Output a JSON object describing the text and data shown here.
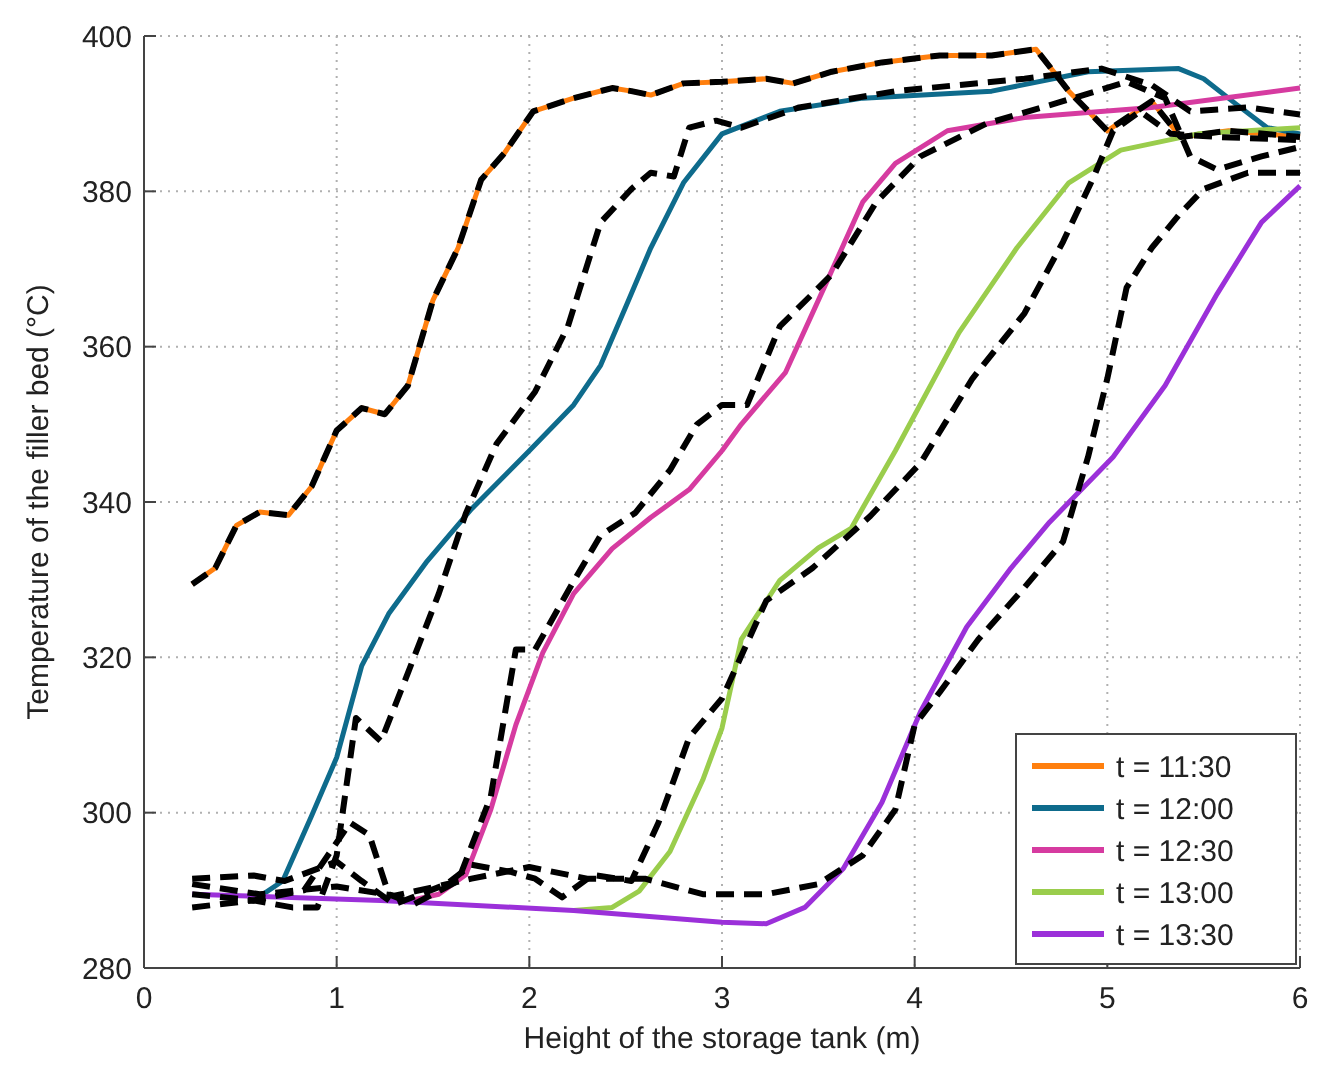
{
  "chart_data": {
    "type": "line",
    "xlabel": "Height of the storage tank (m)",
    "ylabel": "Temperature of the filler bed (°C)",
    "xlim": [
      0,
      6
    ],
    "xticks": [
      0,
      1,
      2,
      3,
      4,
      5,
      6
    ],
    "ylim": [
      280,
      400
    ],
    "yticks": [
      280,
      300,
      320,
      340,
      360,
      380,
      400
    ],
    "grid": true,
    "legend": "bottom right",
    "series": [
      {
        "name": "t = 11:30",
        "color": "#ff7f0e",
        "line_style": "solid",
        "x": [
          0.25,
          0.37,
          0.48,
          0.6,
          0.75,
          0.87,
          1.0,
          1.13,
          1.25,
          1.37,
          1.5,
          1.63,
          1.75,
          1.87,
          2.02,
          2.23,
          2.43,
          2.53,
          2.63,
          2.8,
          3.0,
          3.23,
          3.37,
          3.57,
          3.83,
          4.13,
          4.4,
          4.63,
          4.8,
          5.0,
          5.23,
          5.38,
          5.63,
          6.0
        ],
        "values": [
          329.4,
          331.5,
          337,
          338.7,
          338.3,
          342,
          349.2,
          352.1,
          351.3,
          355,
          366,
          372.7,
          381.5,
          384.9,
          390.3,
          392,
          393.3,
          392.9,
          392.4,
          393.9,
          394.1,
          394.5,
          393.9,
          395.4,
          396.6,
          397.5,
          397.5,
          398.3,
          392.9,
          387.8,
          391.6,
          387,
          387.8,
          387
        ]
      },
      {
        "name": "t = 12:00",
        "color": "#0e6b8c",
        "line_style": "solid",
        "x": [
          0.57,
          0.72,
          0.87,
          1.0,
          1.13,
          1.27,
          1.47,
          1.7,
          2.0,
          2.23,
          2.37,
          2.5,
          2.63,
          2.8,
          3.0,
          3.3,
          3.73,
          4.4,
          4.9,
          5.37,
          5.5,
          5.67,
          5.83,
          6.0
        ],
        "values": [
          288.7,
          291.2,
          299.6,
          307.1,
          318.9,
          325.6,
          332.4,
          339.1,
          346.6,
          352.5,
          357.6,
          365.1,
          372.7,
          381.1,
          387.4,
          390.3,
          392,
          392.9,
          395.4,
          395.8,
          394.5,
          391.2,
          388.2,
          387.4
        ]
      },
      {
        "name": "t = 12:30",
        "color": "#d63ba0",
        "line_style": "solid",
        "x": [
          1.35,
          1.53,
          1.67,
          1.8,
          1.93,
          2.07,
          2.23,
          2.43,
          2.63,
          2.83,
          3.0,
          3.1,
          3.33,
          3.53,
          3.73,
          3.9,
          4.17,
          4.57,
          5.23,
          6.0
        ],
        "values": [
          288.5,
          289.5,
          292,
          300.4,
          311.3,
          320.6,
          328.2,
          334,
          338,
          341.6,
          346.6,
          350,
          356.7,
          367.6,
          378.6,
          383.6,
          387.8,
          389.5,
          390.8,
          393.3
        ]
      },
      {
        "name": "t = 13:00",
        "color": "#9acd4c",
        "line_style": "solid",
        "x": [
          2.23,
          2.43,
          2.57,
          2.73,
          2.9,
          3.0,
          3.1,
          3.3,
          3.5,
          3.67,
          3.9,
          4.23,
          4.53,
          4.8,
          5.07,
          5.47,
          6.0
        ],
        "values": [
          287.4,
          287.8,
          289.9,
          295,
          304.2,
          310.9,
          322.3,
          329.9,
          334.1,
          336.6,
          346.6,
          361.8,
          372.7,
          381.1,
          385.3,
          387.4,
          388.2
        ]
      },
      {
        "name": "t = 13:30",
        "color": "#9b30d9",
        "line_style": "solid",
        "x": [
          0.25,
          1.23,
          2.23,
          3.0,
          3.23,
          3.43,
          3.63,
          3.83,
          4.03,
          4.27,
          4.5,
          4.7,
          5.03,
          5.3,
          5.57,
          5.8,
          6.0
        ],
        "values": [
          289.5,
          288.7,
          287.4,
          285.9,
          285.7,
          287.8,
          292.8,
          301.3,
          313,
          323.9,
          331.5,
          337.4,
          345.8,
          355,
          366.8,
          376,
          380.7
        ]
      },
      {
        "color": "#000000",
        "line_style": "dashed",
        "x": [
          0.25,
          0.37,
          0.48,
          0.6,
          0.75,
          0.87,
          1.0,
          1.13,
          1.25,
          1.37,
          1.5,
          1.63,
          1.75,
          1.87,
          2.02,
          2.23,
          2.43,
          2.53,
          2.63,
          2.8,
          3.0,
          3.23,
          3.37,
          3.57,
          3.83,
          4.13,
          4.4,
          4.63,
          4.8,
          5.0,
          5.23,
          5.38,
          5.63,
          6.0
        ],
        "values": [
          329.4,
          331.5,
          337,
          338.7,
          338.3,
          342,
          349.2,
          352.1,
          351.3,
          355,
          366,
          372.7,
          381.5,
          384.9,
          390.3,
          392,
          393.3,
          392.9,
          392.4,
          393.9,
          394.1,
          394.5,
          393.9,
          395.4,
          396.6,
          397.5,
          397.5,
          398.3,
          392.9,
          387.8,
          391.6,
          387,
          387.8,
          387
        ]
      },
      {
        "color": "#000000",
        "line_style": "dashed",
        "x": [
          0.25,
          0.57,
          0.77,
          0.9,
          1.0,
          1.1,
          1.23,
          1.37,
          1.53,
          1.67,
          1.83,
          2.03,
          2.2,
          2.37,
          2.53,
          2.63,
          2.75,
          2.83,
          2.97,
          3.1,
          3.4,
          3.9,
          4.57,
          4.97,
          5.23,
          5.43,
          5.73,
          6.0
        ],
        "values": [
          287.8,
          288.7,
          287.8,
          287.8,
          294.5,
          312.2,
          309.2,
          318,
          328.2,
          338.5,
          347.5,
          354.2,
          362.6,
          376,
          380.3,
          382.4,
          381.9,
          388.2,
          389.1,
          388.2,
          390.8,
          392.9,
          394.5,
          395.8,
          393.7,
          390.3,
          390.8,
          389.9
        ]
      },
      {
        "color": "#000000",
        "line_style": "dashed",
        "x": [
          0.25,
          0.57,
          0.83,
          1.07,
          1.17,
          1.27,
          1.4,
          1.63,
          1.8,
          1.93,
          2.03,
          2.23,
          2.37,
          2.55,
          2.73,
          2.87,
          3.0,
          3.13,
          3.3,
          3.57,
          3.8,
          4.03,
          4.37,
          4.77,
          5.1,
          5.3,
          5.43,
          5.57,
          5.8,
          6.0
        ],
        "values": [
          289.5,
          288.7,
          290,
          298.7,
          297.1,
          289.5,
          288.2,
          291.2,
          302.1,
          321,
          321,
          329.8,
          335.7,
          338.6,
          344.1,
          350,
          352.5,
          352.5,
          362.6,
          369.3,
          378.6,
          384.5,
          388.7,
          391.6,
          394.1,
          392,
          384.5,
          382.8,
          384.5,
          385.7
        ]
      },
      {
        "color": "#000000",
        "line_style": "dashed",
        "x": [
          0.25,
          0.57,
          0.73,
          1.0,
          1.13,
          1.3,
          1.57,
          1.7,
          1.9,
          2.03,
          2.17,
          2.33,
          2.53,
          2.67,
          2.83,
          3.0,
          3.23,
          3.47,
          3.77,
          4.03,
          4.3,
          4.57,
          4.77,
          4.93,
          5.03,
          5.17,
          5.33,
          5.57,
          6.0
        ],
        "values": [
          291.5,
          291.9,
          291.2,
          293.7,
          291.2,
          288.2,
          290.8,
          293.3,
          292.4,
          291.5,
          289.1,
          292,
          291.2,
          298.7,
          309.7,
          314.7,
          327.3,
          331.5,
          338.2,
          345,
          355.9,
          364.3,
          373.5,
          381.9,
          387.8,
          390.3,
          387.4,
          387,
          386.6
        ]
      },
      {
        "color": "#000000",
        "line_style": "dashed",
        "x": [
          0.25,
          0.6,
          1.0,
          1.3,
          1.7,
          2.0,
          2.3,
          2.6,
          2.9,
          3.23,
          3.5,
          3.73,
          3.9,
          4.0,
          4.13,
          4.33,
          4.57,
          4.77,
          4.9,
          5.0,
          5.1,
          5.23,
          5.37,
          5.5,
          5.73,
          6.0
        ],
        "values": [
          290.8,
          289.5,
          290.5,
          289.3,
          291.5,
          293,
          291.5,
          291.5,
          289.5,
          289.5,
          290.8,
          294.5,
          300.4,
          311.3,
          315.5,
          322.3,
          329,
          334.9,
          345.8,
          355.9,
          367.6,
          372.7,
          376.9,
          380.3,
          382.4,
          382.4
        ]
      }
    ]
  }
}
